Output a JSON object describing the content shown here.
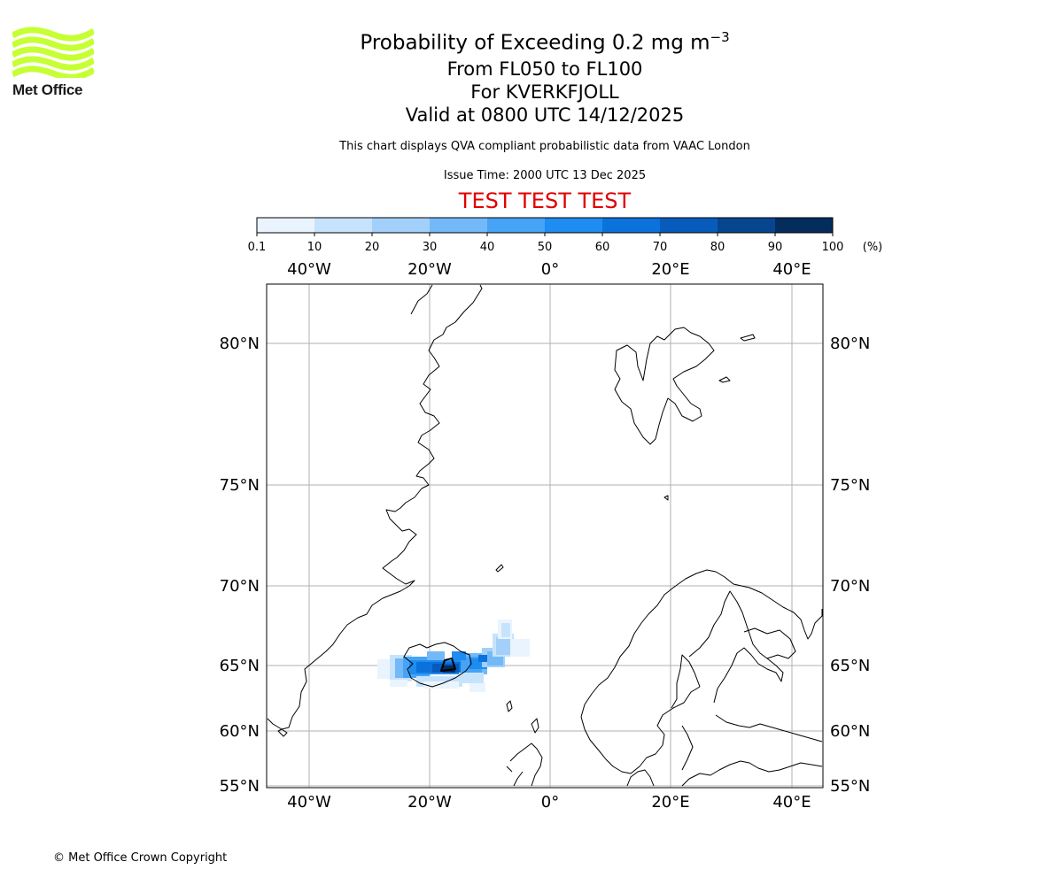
{
  "brand": {
    "name": "Met Office",
    "logo_icon": "met-office-waves-icon",
    "logo_color": "#c6ff33"
  },
  "title": {
    "line1": "Probability of Exceeding 0.2 mg m",
    "line1_superscript": "−3",
    "line2": "From FL050 to FL100",
    "line3": "For KVERKFJOLL",
    "line4": "Valid at 0800 UTC 14/12/2025"
  },
  "subtitle": "This chart displays QVA compliant probabilistic data from VAAC London",
  "issue_time": "Issue Time: 2000 UTC 13 Dec 2025",
  "test_banner": "TEST TEST TEST",
  "test_banner_color": "#e00000",
  "colorbar": {
    "ticks": [
      "0.1",
      "10",
      "20",
      "30",
      "40",
      "50",
      "60",
      "70",
      "80",
      "90",
      "100"
    ],
    "unit": "(%)",
    "colors": [
      "#eaf4fe",
      "#c7e3fc",
      "#a3d0fa",
      "#73b9f7",
      "#46a3f5",
      "#1e8cf0",
      "#0b72dc",
      "#075bba",
      "#06468f",
      "#042c5c"
    ]
  },
  "map": {
    "lon_labels": [
      "40°W",
      "20°W",
      "0°",
      "20°E",
      "40°E"
    ],
    "lat_labels": [
      "80°N",
      "75°N",
      "70°N",
      "65°N",
      "60°N",
      "55°N"
    ],
    "volcano": "Kverkfjoll"
  },
  "copyright": "© Met Office Crown Copyright"
}
